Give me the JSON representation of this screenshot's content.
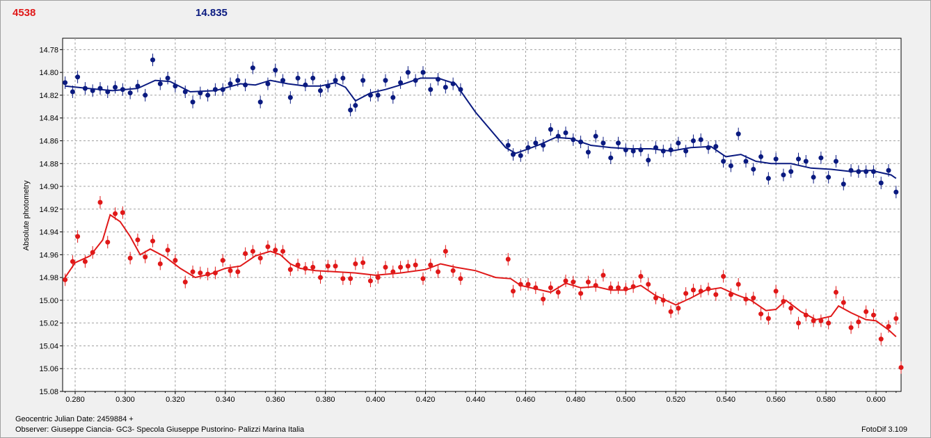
{
  "header": {
    "left_value": "4538",
    "right_value": "14.835"
  },
  "footer": {
    "date_line": "Geocentric Julian Date: 2459884 +",
    "observer_line": "Observer: Giuseppe Ciancia- GC3- Specola Giuseppe Pustorino- Palizzi Marina Italia",
    "software": "FotoDif 3.109"
  },
  "colors": {
    "upper_series": "#0a1a80",
    "lower_series": "#e01818",
    "grid": "#a0a0a0"
  },
  "chart_data": {
    "type": "scatter",
    "ylabel": "Absolute photometry",
    "xlim": [
      0.275,
      0.61
    ],
    "ylim": [
      15.08,
      14.77
    ],
    "y_inverted": true,
    "grid": true,
    "xticks": [
      "0.280",
      "0.300",
      "0.320",
      "0.340",
      "0.360",
      "0.380",
      "0.400",
      "0.420",
      "0.440",
      "0.460",
      "0.480",
      "0.500",
      "0.520",
      "0.540",
      "0.560",
      "0.580",
      "0.600"
    ],
    "yticks": [
      "14.78",
      "14.80",
      "14.82",
      "14.84",
      "14.86",
      "14.88",
      "14.90",
      "14.92",
      "14.94",
      "14.96",
      "14.98",
      "15.00",
      "15.02",
      "15.04",
      "15.06",
      "15.08"
    ],
    "series": [
      {
        "color": "#0a1a80",
        "x": [
          0.276,
          0.279,
          0.281,
          0.284,
          0.287,
          0.29,
          0.293,
          0.296,
          0.299,
          0.302,
          0.305,
          0.308,
          0.311,
          0.314,
          0.317,
          0.32,
          0.324,
          0.327,
          0.33,
          0.333,
          0.336,
          0.339,
          0.342,
          0.345,
          0.348,
          0.351,
          0.354,
          0.357,
          0.36,
          0.363,
          0.366,
          0.369,
          0.372,
          0.375,
          0.378,
          0.381,
          0.384,
          0.387,
          0.39,
          0.392,
          0.395,
          0.398,
          0.401,
          0.404,
          0.407,
          0.41,
          0.413,
          0.416,
          0.419,
          0.422,
          0.425,
          0.428,
          0.431,
          0.434,
          0.453,
          0.455,
          0.458,
          0.461,
          0.464,
          0.467,
          0.47,
          0.473,
          0.476,
          0.479,
          0.482,
          0.485,
          0.488,
          0.491,
          0.494,
          0.497,
          0.5,
          0.503,
          0.506,
          0.509,
          0.512,
          0.515,
          0.518,
          0.521,
          0.524,
          0.527,
          0.53,
          0.533,
          0.536,
          0.539,
          0.542,
          0.545,
          0.548,
          0.551,
          0.554,
          0.557,
          0.56,
          0.563,
          0.566,
          0.569,
          0.572,
          0.575,
          0.578,
          0.581,
          0.584,
          0.587,
          0.59,
          0.593,
          0.596,
          0.599,
          0.602,
          0.605,
          0.608
        ],
        "y": [
          14.809,
          14.817,
          14.804,
          14.814,
          14.816,
          14.814,
          14.817,
          14.813,
          14.815,
          14.818,
          14.812,
          14.82,
          14.789,
          14.81,
          14.805,
          14.812,
          14.817,
          14.826,
          14.818,
          14.82,
          14.815,
          14.815,
          14.81,
          14.807,
          14.811,
          14.796,
          14.826,
          14.81,
          14.798,
          14.807,
          14.822,
          14.805,
          14.811,
          14.805,
          14.816,
          14.812,
          14.807,
          14.805,
          14.833,
          14.829,
          14.807,
          14.82,
          14.82,
          14.807,
          14.822,
          14.809,
          14.8,
          14.807,
          14.8,
          14.815,
          14.806,
          14.813,
          14.81,
          14.815,
          14.864,
          14.872,
          14.873,
          14.866,
          14.862,
          14.864,
          14.85,
          14.856,
          14.853,
          14.859,
          14.861,
          14.87,
          14.856,
          14.862,
          14.875,
          14.862,
          14.868,
          14.869,
          14.868,
          14.877,
          14.866,
          14.869,
          14.868,
          14.862,
          14.869,
          14.86,
          14.859,
          14.866,
          14.865,
          14.878,
          14.882,
          14.854,
          14.878,
          14.885,
          14.874,
          14.893,
          14.876,
          14.89,
          14.887,
          14.876,
          14.878,
          14.892,
          14.875,
          14.892,
          14.878,
          14.898,
          14.886,
          14.887,
          14.887,
          14.887,
          14.897,
          14.886,
          14.905
        ],
        "trend_x": [
          0.276,
          0.285,
          0.295,
          0.305,
          0.312,
          0.318,
          0.326,
          0.336,
          0.346,
          0.352,
          0.358,
          0.365,
          0.372,
          0.378,
          0.384,
          0.388,
          0.392,
          0.398,
          0.404,
          0.41,
          0.418,
          0.425,
          0.432,
          0.44,
          0.452,
          0.456,
          0.46,
          0.466,
          0.472,
          0.478,
          0.486,
          0.494,
          0.502,
          0.51,
          0.518,
          0.526,
          0.534,
          0.54,
          0.546,
          0.552,
          0.558,
          0.566,
          0.574,
          0.582,
          0.59,
          0.598,
          0.606,
          0.608
        ],
        "trend_y": [
          14.812,
          14.814,
          14.816,
          14.814,
          14.807,
          14.808,
          14.817,
          14.816,
          14.81,
          14.811,
          14.807,
          14.81,
          14.812,
          14.812,
          14.809,
          14.813,
          14.825,
          14.818,
          14.815,
          14.811,
          14.805,
          14.805,
          14.81,
          14.835,
          14.866,
          14.871,
          14.868,
          14.863,
          14.857,
          14.858,
          14.864,
          14.866,
          14.867,
          14.867,
          14.869,
          14.866,
          14.865,
          14.874,
          14.872,
          14.878,
          14.88,
          14.88,
          14.884,
          14.885,
          14.887,
          14.886,
          14.89,
          14.893
        ]
      },
      {
        "color": "#e01818",
        "x": [
          0.276,
          0.279,
          0.281,
          0.284,
          0.287,
          0.29,
          0.293,
          0.296,
          0.299,
          0.302,
          0.305,
          0.308,
          0.311,
          0.314,
          0.317,
          0.32,
          0.324,
          0.327,
          0.33,
          0.333,
          0.336,
          0.339,
          0.342,
          0.345,
          0.348,
          0.351,
          0.354,
          0.357,
          0.36,
          0.363,
          0.366,
          0.369,
          0.372,
          0.375,
          0.378,
          0.381,
          0.384,
          0.387,
          0.39,
          0.392,
          0.395,
          0.398,
          0.401,
          0.404,
          0.407,
          0.41,
          0.413,
          0.416,
          0.419,
          0.422,
          0.425,
          0.428,
          0.431,
          0.434,
          0.453,
          0.455,
          0.458,
          0.461,
          0.464,
          0.467,
          0.47,
          0.473,
          0.476,
          0.479,
          0.482,
          0.485,
          0.488,
          0.491,
          0.494,
          0.497,
          0.5,
          0.503,
          0.506,
          0.509,
          0.512,
          0.515,
          0.518,
          0.521,
          0.524,
          0.527,
          0.53,
          0.533,
          0.536,
          0.539,
          0.542,
          0.545,
          0.548,
          0.551,
          0.554,
          0.557,
          0.56,
          0.563,
          0.566,
          0.569,
          0.572,
          0.575,
          0.578,
          0.581,
          0.584,
          0.587,
          0.59,
          0.593,
          0.596,
          0.599,
          0.602,
          0.605,
          0.608,
          0.61
        ],
        "y": [
          14.982,
          14.966,
          14.944,
          14.966,
          14.958,
          14.914,
          14.949,
          14.924,
          14.923,
          14.963,
          14.947,
          14.962,
          14.948,
          14.968,
          14.956,
          14.965,
          14.984,
          14.975,
          14.976,
          14.977,
          14.976,
          14.965,
          14.974,
          14.975,
          14.959,
          14.957,
          14.963,
          14.953,
          14.956,
          14.957,
          14.973,
          14.969,
          14.972,
          14.971,
          14.98,
          14.97,
          14.97,
          14.981,
          14.981,
          14.968,
          14.967,
          14.983,
          14.98,
          14.971,
          14.975,
          14.971,
          14.97,
          14.969,
          14.981,
          14.969,
          14.975,
          14.957,
          14.974,
          14.981,
          14.964,
          14.992,
          14.986,
          14.986,
          14.989,
          14.999,
          14.989,
          14.993,
          14.983,
          14.984,
          14.994,
          14.984,
          14.987,
          14.978,
          14.989,
          14.989,
          14.99,
          14.988,
          14.979,
          14.986,
          14.998,
          15.0,
          15.01,
          15.007,
          14.994,
          14.991,
          14.992,
          14.99,
          14.995,
          14.979,
          14.995,
          14.986,
          14.999,
          14.998,
          15.012,
          15.016,
          14.992,
          15.001,
          15.007,
          15.02,
          15.013,
          15.018,
          15.018,
          15.02,
          14.993,
          15.002,
          15.024,
          15.019,
          15.01,
          15.013,
          15.034,
          15.023,
          15.016,
          15.059
        ],
        "trend_x": [
          0.276,
          0.28,
          0.286,
          0.291,
          0.294,
          0.298,
          0.302,
          0.306,
          0.31,
          0.316,
          0.322,
          0.328,
          0.334,
          0.34,
          0.346,
          0.352,
          0.358,
          0.362,
          0.366,
          0.37,
          0.376,
          0.384,
          0.392,
          0.4,
          0.41,
          0.42,
          0.426,
          0.432,
          0.44,
          0.448,
          0.454,
          0.458,
          0.464,
          0.47,
          0.476,
          0.482,
          0.488,
          0.494,
          0.5,
          0.506,
          0.512,
          0.516,
          0.52,
          0.526,
          0.532,
          0.538,
          0.544,
          0.55,
          0.556,
          0.56,
          0.564,
          0.57,
          0.576,
          0.582,
          0.585,
          0.59,
          0.596,
          0.6,
          0.605,
          0.608
        ],
        "trend_y": [
          14.98,
          14.967,
          14.961,
          14.947,
          14.925,
          14.931,
          14.944,
          14.96,
          14.955,
          14.962,
          14.972,
          14.98,
          14.977,
          14.972,
          14.97,
          14.961,
          14.957,
          14.96,
          14.968,
          14.972,
          14.974,
          14.975,
          14.976,
          14.978,
          14.976,
          14.973,
          14.968,
          14.971,
          14.974,
          14.98,
          14.981,
          14.987,
          14.99,
          14.993,
          14.985,
          14.989,
          14.988,
          14.991,
          14.991,
          14.987,
          14.996,
          15.0,
          15.004,
          14.998,
          14.991,
          14.989,
          14.995,
          15.0,
          15.009,
          15.008,
          15.0,
          15.01,
          15.017,
          15.014,
          15.005,
          15.011,
          15.017,
          15.018,
          15.026,
          15.032
        ]
      }
    ]
  }
}
